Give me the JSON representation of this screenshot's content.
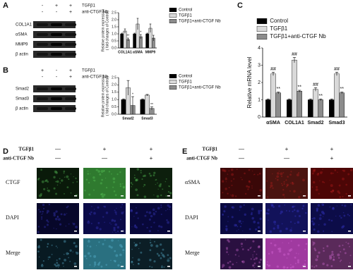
{
  "panel_labels": [
    "A",
    "B",
    "C",
    "D",
    "E"
  ],
  "blot_A": {
    "treatments": [
      "TGFβ1",
      "anti-CTGF Nb"
    ],
    "signs": [
      [
        "-",
        "+",
        "+"
      ],
      [
        "-",
        "-",
        "+"
      ]
    ],
    "bands": [
      "COL1A1",
      "αSMA",
      "MMP9",
      "β actin"
    ]
  },
  "blot_B": {
    "treatments": [
      "TGFβ1",
      "anti-CTGF Nb"
    ],
    "signs": [
      [
        "+",
        "-",
        "+"
      ],
      [
        "-",
        "-",
        "+"
      ]
    ],
    "bands": [
      "Smad2",
      "Smad3",
      "β actin"
    ]
  },
  "image_D": {
    "treatments": [
      "TGFβ1",
      "anti-CTGF Nb"
    ],
    "signs": [
      [
        "—",
        "+",
        "+"
      ],
      [
        "—",
        "—",
        "+"
      ]
    ],
    "rows": [
      "CTGF",
      "DAPI",
      "Merge"
    ]
  },
  "image_E": {
    "treatments": [
      "TGFβ1",
      "anti-CTGF Nb"
    ],
    "signs": [
      [
        "—",
        "+",
        "+"
      ],
      [
        "—",
        "—",
        "+"
      ]
    ],
    "rows": [
      "αSMA",
      "DAPI",
      "Merge"
    ]
  },
  "chart_data": [
    {
      "type": "bar",
      "ylabel": [
        "Relative protein expression",
        "( fold changes of Control)"
      ],
      "categories": [
        "COL1A1",
        "αSMA",
        "MMP9"
      ],
      "series": [
        {
          "name": "Control",
          "color": "#000000",
          "values": [
            1.0,
            1.0,
            1.0
          ],
          "errors": [
            0.05,
            0.05,
            0.05
          ],
          "annotations": [
            null,
            null,
            null
          ]
        },
        {
          "name": "TGFβ1",
          "color": "#d9d9d9",
          "values": [
            1.2,
            1.7,
            1.4
          ],
          "errors": [
            0.15,
            0.4,
            0.3
          ],
          "annotations": [
            null,
            null,
            null
          ]
        },
        {
          "name": "TGFβ1+anti-CTGF Nb",
          "color": "#8c8c8c",
          "values": [
            0.6,
            0.8,
            0.7
          ],
          "errors": [
            0.1,
            0.15,
            0.2
          ],
          "annotations": [
            "**",
            "*",
            null
          ]
        }
      ],
      "ylim": [
        0,
        2.5
      ],
      "yticks": [
        {
          "value": 0,
          "label": "0.0"
        },
        {
          "value": 0.5,
          "label": "0.5"
        },
        {
          "value": 1,
          "label": "1.0"
        },
        {
          "value": 1.5,
          "label": "1.5"
        },
        {
          "value": 2,
          "label": "2.0"
        },
        {
          "value": 2.5,
          "label": "2.5"
        }
      ],
      "legend": "right"
    },
    {
      "type": "bar",
      "ylabel": [
        "Relative protein expression",
        "( fold changes of Control)"
      ],
      "categories": [
        "Smad2",
        "Smad3"
      ],
      "series": [
        {
          "name": "Control",
          "color": "#000000",
          "values": [
            1.0,
            1.0
          ],
          "errors": [
            0.05,
            0.05
          ],
          "annotations": [
            null,
            null
          ]
        },
        {
          "name": "TGFβ1",
          "color": "#d9d9d9",
          "values": [
            1.8,
            1.3
          ],
          "errors": [
            0.5,
            0.05
          ],
          "annotations": [
            null,
            null
          ]
        },
        {
          "name": "TGFβ1+anti-CTGF Nb",
          "color": "#8c8c8c",
          "values": [
            0.6,
            0.4
          ],
          "errors": [
            0.6,
            0.1
          ],
          "annotations": [
            "*",
            "**"
          ]
        }
      ],
      "ylim": [
        0,
        2.5
      ],
      "yticks": [
        {
          "value": 0,
          "label": "0.0"
        },
        {
          "value": 0.5,
          "label": "0.5"
        },
        {
          "value": 1,
          "label": "1.0"
        },
        {
          "value": 1.5,
          "label": "1.5"
        },
        {
          "value": 2,
          "label": "2.0"
        },
        {
          "value": 2.5,
          "label": "2.5"
        }
      ],
      "legend": "right"
    },
    {
      "type": "bar",
      "ylabel": [
        "Relative mRNA level"
      ],
      "categories": [
        "αSMA",
        "COL1A1",
        "Smad2",
        "Smad3"
      ],
      "series": [
        {
          "name": "Control",
          "color": "#000000",
          "values": [
            1.0,
            1.0,
            1.0,
            1.0
          ],
          "errors": [
            0.05,
            0.05,
            0.05,
            0.05
          ],
          "annotations": [
            null,
            null,
            null,
            null
          ]
        },
        {
          "name": "TGFβ1",
          "color": "#d9d9d9",
          "values": [
            2.5,
            3.3,
            1.6,
            2.5
          ],
          "errors": [
            0.1,
            0.15,
            0.1,
            0.1
          ],
          "annotations": [
            "##",
            "##",
            "##",
            "##"
          ]
        },
        {
          "name": "TGFβ1+anti-CTGF Nb",
          "color": "#8c8c8c",
          "values": [
            1.4,
            1.5,
            1.0,
            1.4
          ],
          "errors": [
            0.05,
            0.05,
            0.05,
            0.05
          ],
          "annotations": [
            "**",
            "**",
            "**",
            "**"
          ]
        }
      ],
      "ylim": [
        0,
        4
      ],
      "yticks": [
        0,
        1,
        2,
        3,
        4
      ],
      "legend": "top"
    }
  ]
}
